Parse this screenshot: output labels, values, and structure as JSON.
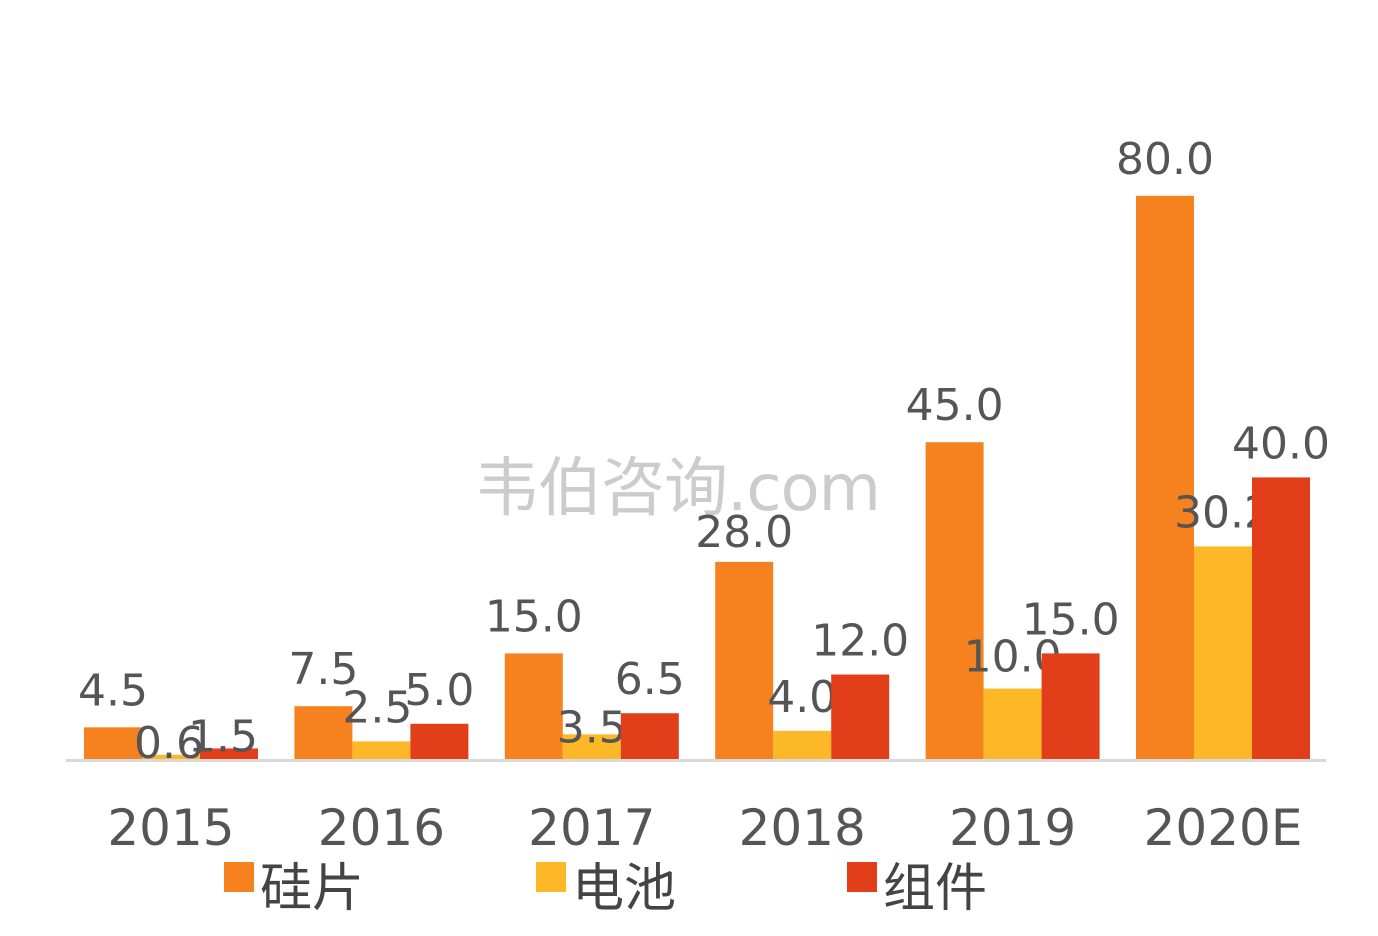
{
  "chart_data": {
    "type": "bar",
    "categories": [
      "2015",
      "2016",
      "2017",
      "2018",
      "2019",
      "2020E"
    ],
    "series": [
      {
        "name": "硅片",
        "color": "#F5821F",
        "values": [
          4.5,
          7.5,
          15.0,
          28.0,
          45.0,
          80.0
        ],
        "labels": [
          "4.5",
          "7.5",
          "15.0",
          "28.0",
          "45.0",
          "80.0"
        ]
      },
      {
        "name": "电池",
        "color": "#FDB827",
        "values": [
          0.6,
          2.5,
          3.5,
          4.0,
          10.0,
          30.2
        ],
        "labels": [
          "0.6",
          "2.5",
          "3.5",
          "4.0",
          "10.0",
          "30.2"
        ]
      },
      {
        "name": "组件",
        "color": "#E23E1A",
        "values": [
          1.5,
          5.0,
          6.5,
          12.0,
          15.0,
          40.0
        ],
        "labels": [
          "1.5",
          "5.0",
          "6.5",
          "12.0",
          "15.0",
          "40.0"
        ]
      }
    ],
    "ylim": [
      0,
      80
    ],
    "grid": false,
    "legend_position": "bottom"
  },
  "watermark": "韦伯咨询.com",
  "colors": {
    "text": "#555555",
    "axis": "#D9D9D9"
  }
}
